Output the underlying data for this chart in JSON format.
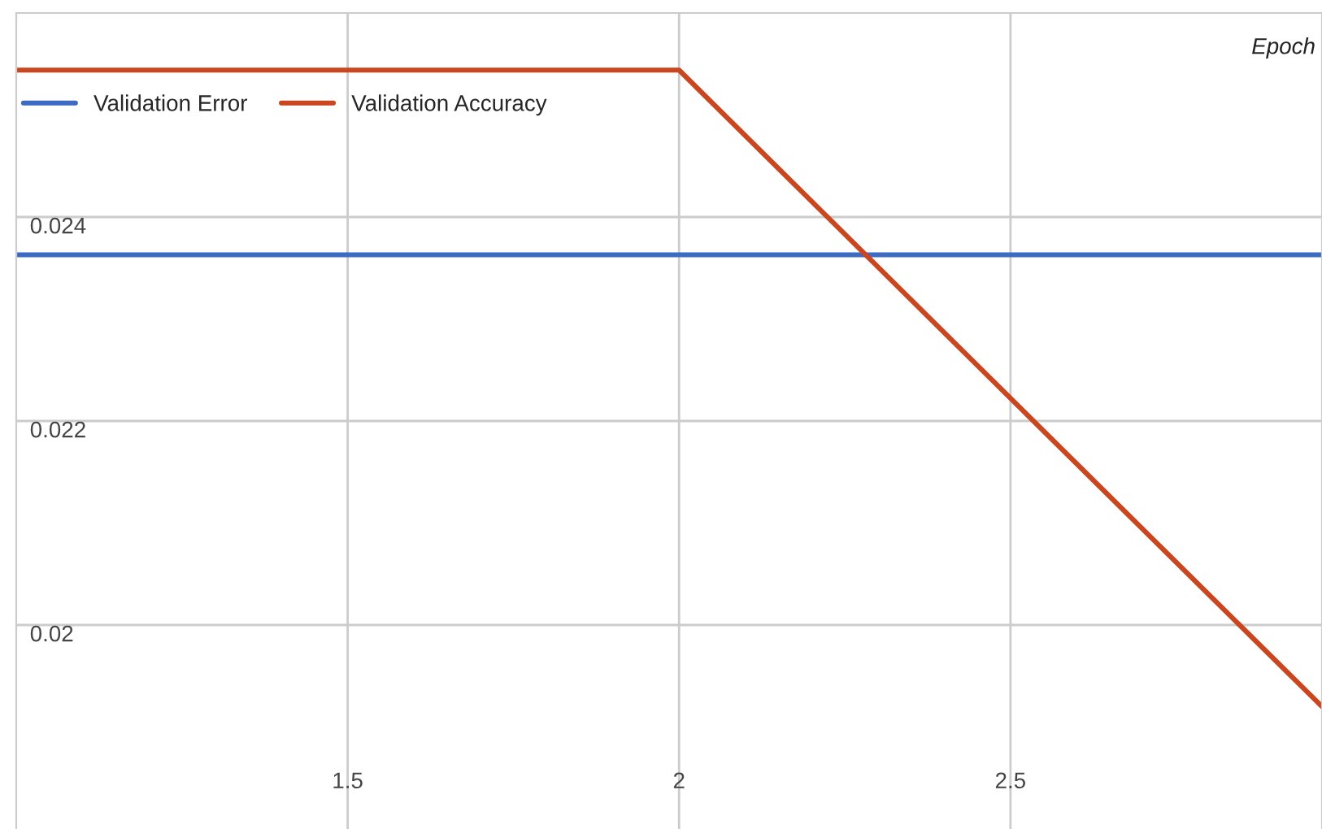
{
  "chart_data": {
    "type": "line",
    "xlabel": "Epoch",
    "x": [
      1,
      2,
      2.97
    ],
    "series": [
      {
        "name": "Validation Error",
        "color": "#3d6bc4",
        "values": [
          0.02363,
          0.02363,
          0.02363
        ]
      },
      {
        "name": "Validation Accuracy",
        "color": "#c9461f",
        "values": [
          0.02544,
          0.02544,
          0.0192
        ]
      }
    ],
    "xlim": [
      1,
      2.97
    ],
    "xticks": [
      1.5,
      2,
      2.5
    ],
    "ylim": [
      0.018,
      0.026
    ],
    "yticks": [
      {
        "value": 0.02,
        "label": "0.02"
      },
      {
        "value": 0.022,
        "label": "0.022"
      },
      {
        "value": 0.024,
        "label": "0.024"
      }
    ],
    "grid": true,
    "legend": "top left",
    "marker": "none",
    "line_style": "solid"
  }
}
